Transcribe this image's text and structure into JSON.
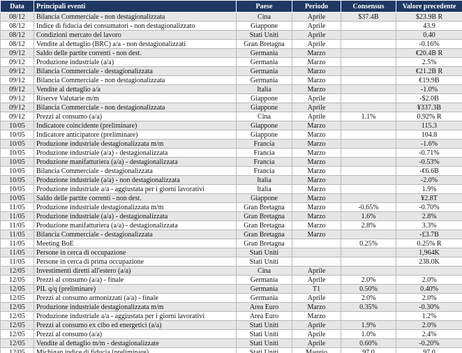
{
  "table": {
    "header": [
      "Data",
      "Principali eventi",
      "Paese",
      "Periodo",
      "Consensus",
      "Valore precedente"
    ],
    "rows": [
      [
        "08/12",
        "Bilancia Commerciale - non destagionalizzata",
        "Cina",
        "Aprile",
        "$37.4B",
        "$23.9B R"
      ],
      [
        "08/12",
        "Indice di fiducia dei consumatori - non destagionalizzato",
        "Giappone",
        "Aprile",
        null,
        "43.9"
      ],
      [
        "08/12",
        "Condizioni mercato del lavoro",
        "Stati Uniti",
        "Aprile",
        null,
        "0.40"
      ],
      [
        "08/12",
        "Vendite al dettaglio (BRC) a/a - non destagionalizzati",
        "Gran Bretagna",
        "Aprile",
        null,
        "-0.16%"
      ],
      [
        "09/12",
        "Saldo delle partite correnti - non dest.",
        "Germania",
        "Marzo",
        null,
        "€20.4B R"
      ],
      [
        "09/12",
        "Produzione industriale (a/a)",
        "Germania",
        "Marzo",
        null,
        "2.5%"
      ],
      [
        "09/12",
        "Bilancia Commerciale - destagionalizzata",
        "Germania",
        "Marzo",
        null,
        "€21.2B R"
      ],
      [
        "09/12",
        "Bilancia Commerciale - non destagionalizzata",
        "Germania",
        "Marzo",
        null,
        "€19.9B"
      ],
      [
        "09/12",
        "Vendite al dettaglio a/a",
        "Italia",
        "Marzo",
        null,
        "-1.0%"
      ],
      [
        "09/12",
        "Riserve Valutarie m/m",
        "Giappone",
        "Aprile",
        null,
        "-$2.0B"
      ],
      [
        "09/12",
        "Bilancia Commerciale - non destagionalizzata",
        "Giappone",
        "Aprile",
        null,
        "¥337.3B"
      ],
      [
        "09/12",
        "Prezzi al consumo (a/a)",
        "Cina",
        "Aprile",
        "1.1%",
        "0.92% R"
      ],
      [
        "10/05",
        "Indicatore coincidente (preliminare)",
        "Giappone",
        "Marzo",
        null,
        "115.3"
      ],
      [
        "10/05",
        "Indicatore anticipatore (preliminare)",
        "Giappone",
        "Marzo",
        null,
        "104.8"
      ],
      [
        "10/05",
        "Produzione industriale destagionalizzata m/m",
        "Francia",
        "Marzo",
        null,
        "-1.6%"
      ],
      [
        "10/05",
        "Produzione industriale (a/a) - destagionalizzata",
        "Francia",
        "Marzo",
        null,
        "-0.71%"
      ],
      [
        "10/05",
        "Produzione manifatturiera (a/a) - destagionalizzata",
        "Francia",
        "Marzo",
        null,
        "-0.53%"
      ],
      [
        "10/05",
        "Bilancia Commerciale - destagionalizzata",
        "Francia",
        "Marzo",
        null,
        "-€6.6B"
      ],
      [
        "10/05",
        "Produzione industriale (a/a) - non destagionalizzata",
        "Italia",
        "Marzo",
        null,
        "-2.0%"
      ],
      [
        "10/05",
        "Produzione industriale a/a - aggiustata per i giorni lavorativi",
        "Italia",
        "Marzo",
        null,
        "1.9%"
      ],
      [
        "10/05",
        "Saldo delle partite correnti - non dest.",
        "Giappone",
        "Marzo",
        null,
        "¥2.8T"
      ],
      [
        "11/05",
        "Produzione industriale destagionalizzata m/m",
        "Gran Bretagna",
        "Marzo",
        "-0.65%",
        "-0.70%"
      ],
      [
        "11/05",
        "Produzione industriale (a/a) - destagionalizzata",
        "Gran Bretagna",
        "Marzo",
        "1.6%",
        "2.8%"
      ],
      [
        "11/05",
        "Produzione manifatturiera (a/a) - destagionalizzata",
        "Gran Bretagna",
        "Marzo",
        "2.8%",
        "3.3%"
      ],
      [
        "11/05",
        "Bilancia Commerciale - destagionalizzata",
        "Gran Bretagna",
        "Marzo",
        null,
        "-£3.7B"
      ],
      [
        "11/05",
        "Meeting BoE",
        "Gran Bretagna",
        null,
        "0.25%",
        "0.25% R"
      ],
      [
        "11/05",
        "Persone in cerca di occupazione",
        "Stati Uniti",
        null,
        null,
        "1,964K"
      ],
      [
        "11/05",
        "Persone in cerca di prima occupazione",
        "Stati Uniti",
        null,
        null,
        "238.0K"
      ],
      [
        "12/05",
        "Investimenti diretti all'estero (a/a)",
        "Cina",
        "Aprile",
        null,
        null
      ],
      [
        "12/05",
        "Prezzi al consumo (a/a) - finale",
        "Germania",
        "Aprile",
        "2.0%",
        "2.0%"
      ],
      [
        "12/05",
        "PIL q/q (preliminare)",
        "Germania",
        "T1",
        "0.50%",
        "0.40%"
      ],
      [
        "12/05",
        "Prezzi al consumo armonizzati (a/a) - finale",
        "Germania",
        "Aprile",
        "2.0%",
        "2.0%"
      ],
      [
        "12/05",
        "Produzione industriale destagionalizzata m/m",
        "Area Euro",
        "Marzo",
        "0.35%",
        "-0.30%"
      ],
      [
        "12/05",
        "Produzione industriale a/a - aggiustata per i giorni lavorativi",
        "Area Euro",
        "Marzo",
        null,
        "1.2%"
      ],
      [
        "12/05",
        "Prezzi al consumo ex cibo ed energetici (a/a)",
        "Stati Uniti",
        "Aprile",
        "1.9%",
        "2.0%"
      ],
      [
        "12/05",
        "Prezzi al consumo (a/a)",
        "Stati Uniti",
        "Aprile",
        "1.0%",
        "2.4%"
      ],
      [
        "12/05",
        "Vendite al dettaglio m/m - destagionalizzate",
        "Stati Uniti",
        "Aprile",
        "0.60%",
        "-0.20%"
      ],
      [
        "12/05",
        "Michigan indice di fiducia (preliminare)",
        "Stati Uniti",
        "Maggio",
        "97.0",
        "97.0"
      ]
    ]
  }
}
